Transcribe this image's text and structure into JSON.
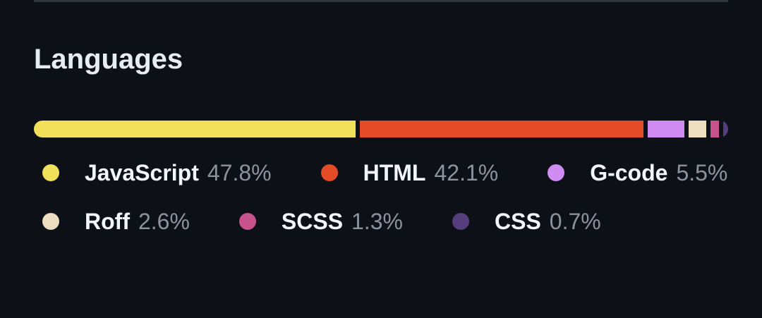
{
  "header": {
    "title": "Languages"
  },
  "languages": [
    {
      "name": "JavaScript",
      "value": 47.8,
      "label": "47.8%",
      "color": "#f1e05a"
    },
    {
      "name": "HTML",
      "value": 42.1,
      "label": "42.1%",
      "color": "#e34c26"
    },
    {
      "name": "G-code",
      "value": 5.5,
      "label": "5.5%",
      "color": "#d08cf2"
    },
    {
      "name": "Roff",
      "value": 2.6,
      "label": "2.6%",
      "color": "#ecdebe"
    },
    {
      "name": "SCSS",
      "value": 1.3,
      "label": "1.3%",
      "color": "#c6538c"
    },
    {
      "name": "CSS",
      "value": 0.7,
      "label": "0.7%",
      "color": "#563d7c"
    }
  ]
}
